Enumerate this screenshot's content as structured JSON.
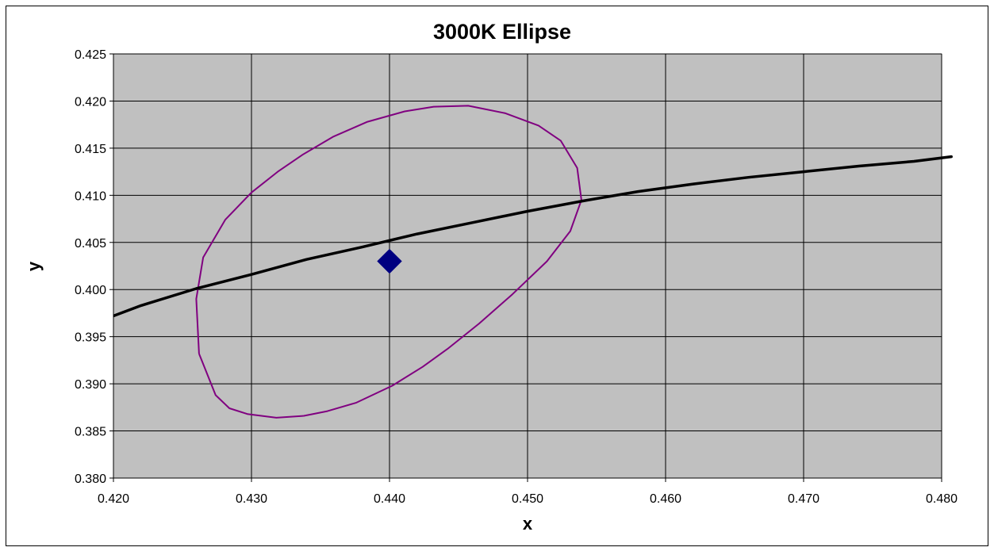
{
  "chart_data": {
    "type": "scatter",
    "title": "3000K Ellipse",
    "xlabel": "x",
    "ylabel": "y",
    "xlim": [
      0.42,
      0.48
    ],
    "ylim": [
      0.38,
      0.425
    ],
    "x_ticks": [
      "0.420",
      "0.430",
      "0.440",
      "0.450",
      "0.460",
      "0.470",
      "0.480"
    ],
    "y_ticks": [
      "0.380",
      "0.385",
      "0.390",
      "0.395",
      "0.400",
      "0.405",
      "0.410",
      "0.415",
      "0.420",
      "0.425"
    ],
    "grid": true,
    "legend": "none",
    "plot_background": "#c0c0c0",
    "series": [
      {
        "kind": "point",
        "marker": "diamond",
        "color": "#000080",
        "x": [
          0.44
        ],
        "y": [
          0.403
        ]
      },
      {
        "kind": "ellipse",
        "color": "#800080",
        "x": [
          0.4262,
          0.4274,
          0.4284,
          0.4297,
          0.4318,
          0.4338,
          0.4355,
          0.4376,
          0.4402,
          0.4424,
          0.4442,
          0.4465,
          0.4489,
          0.4514,
          0.4531,
          0.4539,
          0.4536,
          0.4524,
          0.4508,
          0.4484,
          0.4457,
          0.4432,
          0.4411,
          0.4384,
          0.4359,
          0.4337,
          0.4319,
          0.43,
          0.4281,
          0.4265,
          0.426,
          0.4262
        ],
        "y": [
          0.3932,
          0.3888,
          0.3874,
          0.3868,
          0.3864,
          0.3866,
          0.3871,
          0.388,
          0.3898,
          0.3918,
          0.3937,
          0.3964,
          0.3995,
          0.403,
          0.4062,
          0.4095,
          0.4129,
          0.4158,
          0.4174,
          0.4187,
          0.4195,
          0.4194,
          0.4189,
          0.4178,
          0.4162,
          0.4143,
          0.4125,
          0.4103,
          0.4074,
          0.4034,
          0.399,
          0.3932
        ]
      },
      {
        "kind": "line",
        "color": "#000000",
        "x": [
          0.42,
          0.422,
          0.426,
          0.43,
          0.434,
          0.438,
          0.442,
          0.446,
          0.45,
          0.454,
          0.458,
          0.462,
          0.466,
          0.47,
          0.474,
          0.478,
          0.4807
        ],
        "y": [
          0.3972,
          0.3983,
          0.4001,
          0.4016,
          0.4032,
          0.4045,
          0.4059,
          0.4071,
          0.4083,
          0.4094,
          0.4104,
          0.4112,
          0.4119,
          0.4125,
          0.4131,
          0.4136,
          0.4141
        ]
      }
    ]
  }
}
